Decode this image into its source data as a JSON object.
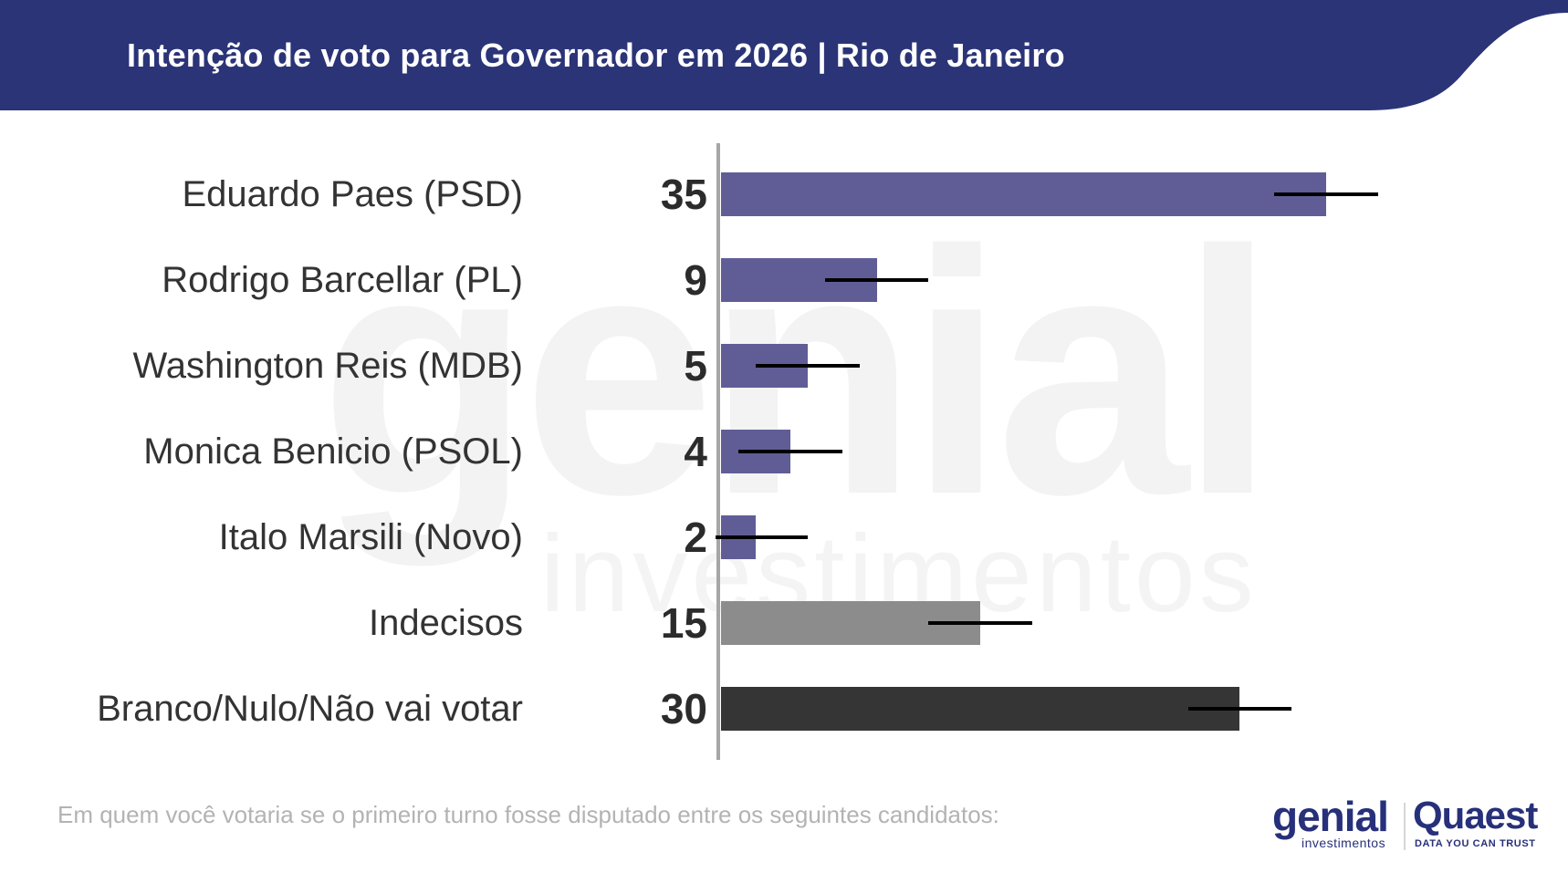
{
  "header": {
    "title": "Intenção de voto para Governador em 2026 | Rio de Janeiro",
    "background_color": "#2b3477"
  },
  "watermark": {
    "main": "genial",
    "sub": "investimentos"
  },
  "chart_data": {
    "type": "bar",
    "orientation": "horizontal",
    "title": "Intenção de voto para Governador em 2026 | Rio de Janeiro",
    "categories": [
      "Eduardo Paes (PSD)",
      "Rodrigo Barcellar (PL)",
      "Washington Reis (MDB)",
      "Monica Benicio (PSOL)",
      "Italo Marsili (Novo)",
      "Indecisos",
      "Branco/Nulo/Não vai votar"
    ],
    "values": [
      35,
      9,
      5,
      4,
      2,
      15,
      30
    ],
    "value_labels": [
      "35",
      "9",
      "5",
      "4",
      "2",
      "15",
      "30"
    ],
    "colors": [
      "#605d96",
      "#605d96",
      "#605d96",
      "#605d96",
      "#605d96",
      "#8c8c8c",
      "#353535"
    ],
    "error_margin": 3,
    "xlim": [
      0,
      38
    ],
    "grid": false,
    "legend": "none"
  },
  "footnote": "Em quem você votaria se o primeiro turno fosse disputado entre os seguintes candidatos:",
  "logos": {
    "genial_main": "genial",
    "genial_sub": "investimentos",
    "quaest_main": "Quaest",
    "quaest_sub": "DATA YOU CAN TRUST"
  }
}
